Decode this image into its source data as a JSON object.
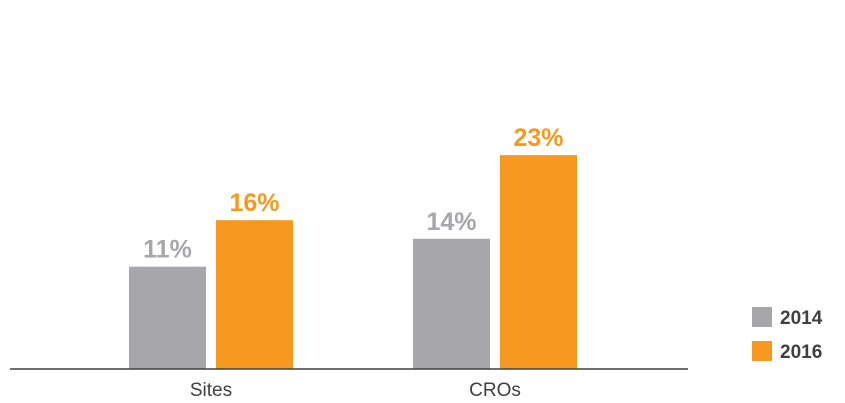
{
  "chart_data": {
    "type": "bar",
    "categories": [
      "Sites",
      "CROs"
    ],
    "series": [
      {
        "name": "2014",
        "values": [
          11,
          14
        ],
        "labels": [
          "11%",
          "14%"
        ],
        "color": "#a7a6ab",
        "label_color": "#a7a6ab"
      },
      {
        "name": "2016",
        "values": [
          16,
          23
        ],
        "labels": [
          "16%",
          "23%"
        ],
        "color": "#f7991e",
        "label_color": "#f7991e"
      }
    ],
    "title": "",
    "xlabel": "",
    "ylabel": "",
    "ylim": [
      0,
      25
    ],
    "grid": false,
    "legend_position": "bottom-right"
  }
}
